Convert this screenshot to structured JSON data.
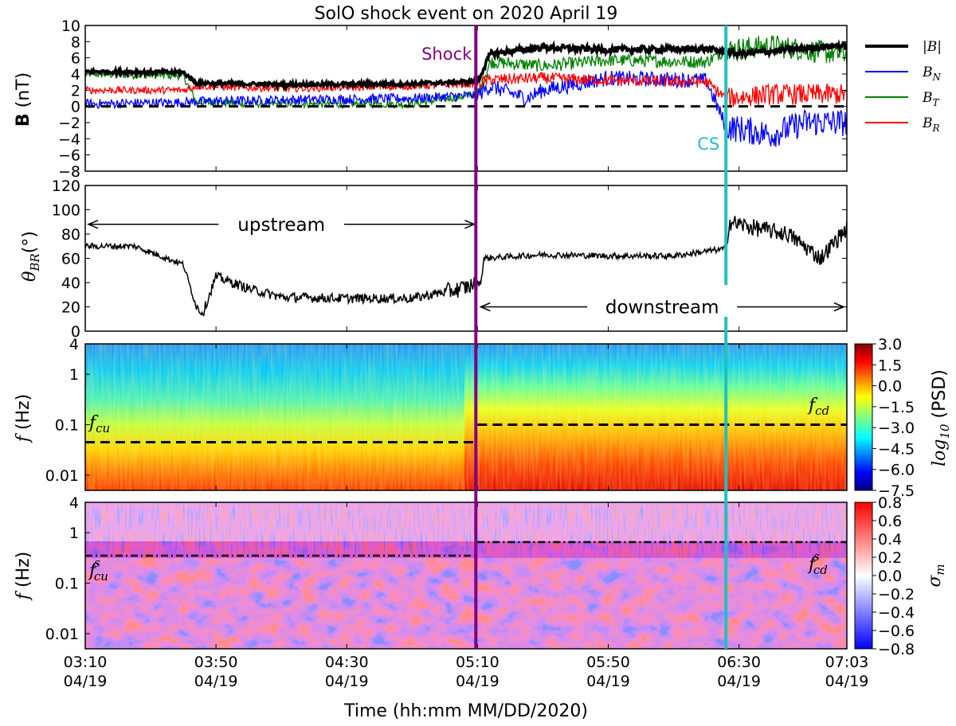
{
  "figure": {
    "title": "SolO shock event on 2020 April 19",
    "xlabel": "Time (hh:mm MM/DD/2020)"
  },
  "chart_data": [
    {
      "type": "line",
      "panel": "magnetic-field",
      "ylabel": "B (nT)",
      "ylim": [
        -8,
        10
      ],
      "yticks": [
        10,
        8,
        6,
        4,
        2,
        0,
        -2,
        -4,
        -6,
        -8
      ],
      "xlim": [
        "03:10",
        "07:03"
      ],
      "x_unit": "minutes since 03:10",
      "legend_position": "right",
      "series": [
        {
          "name": "|B|",
          "color": "#000000",
          "x": [
            0,
            30,
            34,
            60,
            100,
            120,
            124,
            140,
            160,
            190,
            200,
            230,
            233
          ],
          "y": [
            4.3,
            4.2,
            2.9,
            2.7,
            2.8,
            3.1,
            6.5,
            7.3,
            7.0,
            7.1,
            6.5,
            7.5,
            7.5
          ]
        },
        {
          "name": "B_N",
          "color": "#0000ff",
          "x": [
            0,
            30,
            34,
            60,
            100,
            120,
            124,
            135,
            140,
            160,
            190,
            196,
            210,
            220,
            233
          ],
          "y": [
            0.3,
            0.5,
            0.6,
            0.8,
            1.0,
            1.4,
            2.5,
            1.0,
            2.0,
            3.5,
            3.2,
            -2.5,
            -3.5,
            -2.0,
            -2.0
          ]
        },
        {
          "name": "B_T",
          "color": "#008000",
          "x": [
            0,
            30,
            34,
            60,
            100,
            120,
            124,
            140,
            160,
            190,
            196,
            210,
            230,
            233
          ],
          "y": [
            4.0,
            3.8,
            0.5,
            0.3,
            0.3,
            1.5,
            5.5,
            5.0,
            5.7,
            5.5,
            7.0,
            7.5,
            6.5,
            6.5
          ]
        },
        {
          "name": "B_R",
          "color": "#ff0000",
          "x": [
            0,
            30,
            34,
            60,
            100,
            120,
            124,
            140,
            160,
            190,
            196,
            210,
            230,
            233
          ],
          "y": [
            2.0,
            2.0,
            2.5,
            2.2,
            2.5,
            2.8,
            3.3,
            3.5,
            3.2,
            3.0,
            1.0,
            1.5,
            1.5,
            1.5
          ]
        }
      ],
      "reference_line": {
        "y": 0,
        "style": "dashed"
      }
    },
    {
      "type": "line",
      "panel": "theta-br",
      "ylabel": "θ_BR(°)",
      "ylim": [
        0,
        120
      ],
      "yticks": [
        120,
        100,
        80,
        60,
        40,
        20,
        0
      ],
      "series": [
        {
          "name": "theta_BR",
          "color": "#000000",
          "x": [
            0,
            15,
            25,
            30,
            34,
            36,
            40,
            50,
            60,
            80,
            100,
            115,
            121,
            122,
            140,
            160,
            180,
            196,
            197,
            205,
            215,
            225,
            233
          ],
          "y": [
            70,
            70,
            60,
            55,
            20,
            15,
            45,
            35,
            28,
            27,
            27,
            35,
            40,
            60,
            63,
            62,
            62,
            68,
            90,
            85,
            80,
            60,
            85
          ]
        }
      ],
      "annotations": [
        {
          "text": "upstream",
          "x_from": 0,
          "x_to": 120,
          "y": 88
        },
        {
          "text": "downstream",
          "x_from": 120,
          "x_to": 233,
          "y": 20
        }
      ]
    },
    {
      "type": "heatmap",
      "panel": "psd-spectrogram",
      "ylabel": "f (Hz)",
      "yscale": "log",
      "yticks": [
        "4",
        "1",
        "0.1",
        "0.01"
      ],
      "colorbar_label": "log10 (PSD)",
      "colorbar_ticks": [
        "3.0",
        "1.5",
        "0.0",
        "−1.5",
        "−3.0",
        "−4.5",
        "−6.0",
        "−7.5"
      ],
      "colorbar_range": [
        -7.5,
        3.0
      ],
      "colormap": "jet",
      "levels": [
        {
          "f": 4,
          "upstream": -6.5,
          "downstream": -6.5
        },
        {
          "f": 1,
          "upstream": -4.5,
          "downstream": -3.5
        },
        {
          "f": 0.1,
          "upstream": -1.5,
          "downstream": 0.0
        },
        {
          "f": 0.01,
          "upstream": 1.0,
          "downstream": 2.0
        }
      ],
      "dashed_lines": [
        {
          "label": "f_cu",
          "x_from": 0,
          "x_to": 120,
          "f": 0.045
        },
        {
          "label": "f_cd",
          "x_from": 120,
          "x_to": 233,
          "f": 0.1
        }
      ]
    },
    {
      "type": "heatmap",
      "panel": "sigma-m",
      "ylabel": "f (Hz)",
      "yscale": "log",
      "yticks": [
        "4",
        "1",
        "0.1",
        "0.01"
      ],
      "colorbar_label": "σ_m",
      "colorbar_ticks": [
        "0.8",
        "0.6",
        "0.4",
        "0.2",
        "0.0",
        "−0.2",
        "−0.4",
        "−0.6",
        "−0.8"
      ],
      "colorbar_range": [
        -0.8,
        0.8
      ],
      "colormap": "bwr",
      "dashdot_lines": [
        {
          "label": "f_cu^s",
          "x_from": 0,
          "x_to": 120,
          "f": 0.35
        },
        {
          "label": "f_cd^s",
          "x_from": 120,
          "x_to": 233,
          "f": 0.65
        }
      ]
    }
  ],
  "events": [
    {
      "label": "Shock",
      "x": 119.5,
      "color": "#800080"
    },
    {
      "label": "CS",
      "x": 196,
      "color": "#20c0c0"
    }
  ],
  "legend": [
    {
      "label": "|B|",
      "color": "#000000",
      "sym": "B",
      "sub": ""
    },
    {
      "label": "B_N",
      "color": "#0000ff",
      "sym": "B",
      "sub": "N"
    },
    {
      "label": "B_T",
      "color": "#008000",
      "sym": "B",
      "sub": "T"
    },
    {
      "label": "B_R",
      "color": "#ff0000",
      "sym": "B",
      "sub": "R"
    }
  ],
  "xticks": [
    {
      "time": "03:10",
      "date": "04/19"
    },
    {
      "time": "03:50",
      "date": "04/19"
    },
    {
      "time": "04:30",
      "date": "04/19"
    },
    {
      "time": "05:10",
      "date": "04/19"
    },
    {
      "time": "05:50",
      "date": "04/19"
    },
    {
      "time": "06:30",
      "date": "04/19"
    },
    {
      "time": "07:03",
      "date": "04/19"
    }
  ],
  "labels": {
    "fcu": "f",
    "fcu_sub": "cu",
    "fcd": "f",
    "fcd_sub": "cd",
    "fcus": "f",
    "fcus_sub": "cu",
    "fcus_sup": "s",
    "fcds": "f",
    "fcds_sub": "cd",
    "fcds_sup": "s",
    "theta": "θ",
    "theta_sub": "BR",
    "theta_unit": "(°)",
    "bold_B": "B",
    "b_unit": " (nT)",
    "f_var": "f",
    "f_unit": " (Hz)",
    "psd_log": "log",
    "psd_sub": "10",
    "psd_unit": " (PSD)",
    "sigma": "σ",
    "sigma_sub": "m"
  }
}
